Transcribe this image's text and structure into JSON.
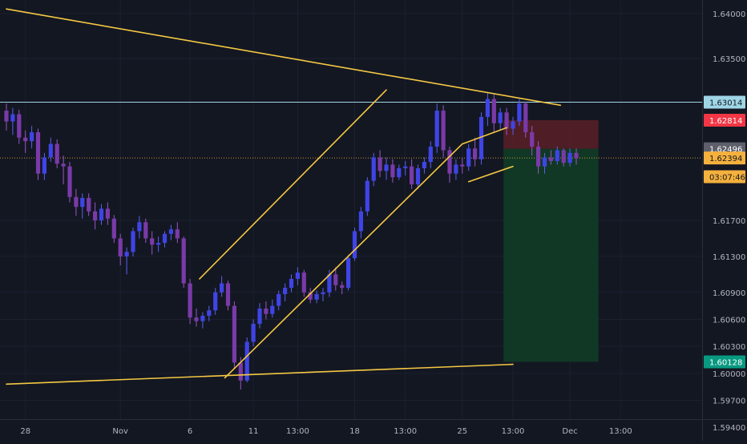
{
  "chart_data": {
    "type": "candlestick",
    "y_axis": {
      "ylim": [
        1.5925,
        1.6415
      ],
      "ticks": [
        "1.64000",
        "1.63500",
        "1.61700",
        "1.61300",
        "1.60900",
        "1.60600",
        "1.60300",
        "1.60000",
        "1.59700",
        "1.59400"
      ],
      "tick_values": [
        1.64,
        1.635,
        1.617,
        1.613,
        1.609,
        1.606,
        1.603,
        1.6,
        1.597,
        1.594
      ]
    },
    "x_axis": {
      "ticks": [
        "28",
        "Nov",
        "6",
        "11",
        "13:00",
        "18",
        "13:00",
        "25",
        "13:00",
        "Dec",
        "13:00"
      ],
      "tick_positions": [
        3,
        18,
        29,
        39,
        46,
        55,
        63,
        72,
        80,
        89,
        97
      ]
    },
    "price_badges": [
      {
        "label": "1.63014",
        "value": 1.63014,
        "kind": "level",
        "color": "#9fd6e6"
      },
      {
        "label": "1.62814",
        "value": 1.62814,
        "kind": "stop",
        "color": "#f23645"
      },
      {
        "label": "1.62496",
        "value": 1.62496,
        "kind": "entry",
        "color": "#5d606b"
      },
      {
        "label": "1.62394",
        "value": 1.62394,
        "kind": "last",
        "color": "#f5b13d"
      },
      {
        "label": "03:07:46",
        "value": 1.62185,
        "kind": "countdown",
        "color": "#f5b13d"
      },
      {
        "label": "1.60128",
        "value": 1.60128,
        "kind": "target",
        "color": "#089981"
      }
    ],
    "horizontal_level": 1.63014,
    "current_price": 1.62394,
    "position": {
      "entry": 1.62496,
      "stop": 1.62814,
      "target": 1.60128,
      "x_start": 78.5,
      "x_end": 93.5
    },
    "trendlines": [
      {
        "x": [
          0,
          87.5
        ],
        "y": [
          1.6405,
          1.6298
        ]
      },
      {
        "x": [
          0,
          80
        ],
        "y": [
          1.5988,
          1.601
        ]
      },
      {
        "x": [
          30.5,
          60
        ],
        "y": [
          1.6105,
          1.6315
        ]
      },
      {
        "x": [
          34.5,
          72
        ],
        "y": [
          1.5995,
          1.6255
        ]
      },
      {
        "x": [
          72,
          79
        ],
        "y": [
          1.6255,
          1.6273
        ]
      },
      {
        "x": [
          73,
          80
        ],
        "y": [
          1.6213,
          1.623
        ]
      }
    ],
    "candles": [
      [
        1.6292,
        1.63,
        1.627,
        1.628
      ],
      [
        1.628,
        1.6295,
        1.6265,
        1.6288
      ],
      [
        1.6288,
        1.6293,
        1.6255,
        1.6262
      ],
      [
        1.6262,
        1.627,
        1.6245,
        1.6258
      ],
      [
        1.6258,
        1.6275,
        1.625,
        1.6268
      ],
      [
        1.6268,
        1.6272,
        1.6215,
        1.6222
      ],
      [
        1.6222,
        1.6245,
        1.6215,
        1.624
      ],
      [
        1.624,
        1.6262,
        1.6235,
        1.6255
      ],
      [
        1.6255,
        1.626,
        1.6228,
        1.6233
      ],
      [
        1.6233,
        1.6242,
        1.621,
        1.623
      ],
      [
        1.623,
        1.6235,
        1.619,
        1.6196
      ],
      [
        1.6196,
        1.6205,
        1.6175,
        1.6185
      ],
      [
        1.6185,
        1.62,
        1.6172,
        1.6195
      ],
      [
        1.6195,
        1.62,
        1.6175,
        1.618
      ],
      [
        1.618,
        1.619,
        1.616,
        1.617
      ],
      [
        1.617,
        1.6188,
        1.6165,
        1.6183
      ],
      [
        1.6183,
        1.619,
        1.6165,
        1.6172
      ],
      [
        1.6172,
        1.6176,
        1.6145,
        1.615
      ],
      [
        1.615,
        1.6155,
        1.612,
        1.613
      ],
      [
        1.613,
        1.614,
        1.611,
        1.6135
      ],
      [
        1.6135,
        1.6162,
        1.613,
        1.6158
      ],
      [
        1.6158,
        1.6175,
        1.615,
        1.6168
      ],
      [
        1.6168,
        1.6172,
        1.6145,
        1.615
      ],
      [
        1.615,
        1.6158,
        1.6132,
        1.6143
      ],
      [
        1.6143,
        1.6152,
        1.6135,
        1.6145
      ],
      [
        1.6145,
        1.6158,
        1.614,
        1.6155
      ],
      [
        1.6155,
        1.6165,
        1.6148,
        1.616
      ],
      [
        1.616,
        1.6168,
        1.6145,
        1.615
      ],
      [
        1.615,
        1.6152,
        1.6095,
        1.61
      ],
      [
        1.61,
        1.6105,
        1.6055,
        1.6062
      ],
      [
        1.6062,
        1.6072,
        1.6052,
        1.6058
      ],
      [
        1.6058,
        1.6068,
        1.605,
        1.6064
      ],
      [
        1.6064,
        1.6075,
        1.6058,
        1.607
      ],
      [
        1.607,
        1.6095,
        1.6065,
        1.609
      ],
      [
        1.609,
        1.6108,
        1.6085,
        1.61
      ],
      [
        1.61,
        1.6103,
        1.607,
        1.6075
      ],
      [
        1.6075,
        1.608,
        1.6005,
        1.6012
      ],
      [
        1.6012,
        1.6018,
        1.5982,
        1.5992
      ],
      [
        1.5992,
        1.604,
        1.599,
        1.6035
      ],
      [
        1.6035,
        1.606,
        1.603,
        1.6055
      ],
      [
        1.6055,
        1.6078,
        1.605,
        1.6072
      ],
      [
        1.6072,
        1.608,
        1.606,
        1.6066
      ],
      [
        1.6066,
        1.6082,
        1.6062,
        1.6075
      ],
      [
        1.6075,
        1.6092,
        1.607,
        1.6088
      ],
      [
        1.6088,
        1.61,
        1.608,
        1.6095
      ],
      [
        1.6095,
        1.611,
        1.609,
        1.6105
      ],
      [
        1.6105,
        1.6118,
        1.6098,
        1.6112
      ],
      [
        1.6112,
        1.6115,
        1.6085,
        1.609
      ],
      [
        1.609,
        1.6095,
        1.6078,
        1.6082
      ],
      [
        1.6082,
        1.6092,
        1.6078,
        1.6088
      ],
      [
        1.6088,
        1.6095,
        1.608,
        1.609
      ],
      [
        1.609,
        1.6115,
        1.6085,
        1.611
      ],
      [
        1.611,
        1.6118,
        1.6092,
        1.6098
      ],
      [
        1.6098,
        1.6102,
        1.6088,
        1.6095
      ],
      [
        1.6095,
        1.6132,
        1.6092,
        1.6128
      ],
      [
        1.6128,
        1.6162,
        1.6125,
        1.6158
      ],
      [
        1.6158,
        1.6185,
        1.615,
        1.618
      ],
      [
        1.618,
        1.6218,
        1.6175,
        1.6214
      ],
      [
        1.6214,
        1.6245,
        1.6208,
        1.624
      ],
      [
        1.624,
        1.6248,
        1.6218,
        1.6225
      ],
      [
        1.6225,
        1.624,
        1.6215,
        1.6232
      ],
      [
        1.6232,
        1.6238,
        1.6212,
        1.6218
      ],
      [
        1.6218,
        1.6232,
        1.6215,
        1.6228
      ],
      [
        1.6228,
        1.6236,
        1.622,
        1.623
      ],
      [
        1.623,
        1.6238,
        1.6205,
        1.621
      ],
      [
        1.621,
        1.6232,
        1.6205,
        1.6228
      ],
      [
        1.6228,
        1.624,
        1.6222,
        1.6235
      ],
      [
        1.6235,
        1.6258,
        1.6228,
        1.6252
      ],
      [
        1.6252,
        1.63,
        1.6245,
        1.6292
      ],
      [
        1.6292,
        1.6298,
        1.624,
        1.6248
      ],
      [
        1.6248,
        1.6252,
        1.6212,
        1.6222
      ],
      [
        1.6222,
        1.6238,
        1.6215,
        1.6232
      ],
      [
        1.6232,
        1.624,
        1.6222,
        1.623
      ],
      [
        1.623,
        1.6255,
        1.6225,
        1.625
      ],
      [
        1.625,
        1.6262,
        1.623,
        1.6238
      ],
      [
        1.6238,
        1.629,
        1.6232,
        1.6285
      ],
      [
        1.6285,
        1.6312,
        1.6275,
        1.6305
      ],
      [
        1.6305,
        1.631,
        1.6268,
        1.6278
      ],
      [
        1.6278,
        1.6295,
        1.627,
        1.629
      ],
      [
        1.629,
        1.6295,
        1.6265,
        1.6272
      ],
      [
        1.6272,
        1.6285,
        1.6265,
        1.628
      ],
      [
        1.628,
        1.6305,
        1.6275,
        1.63
      ],
      [
        1.63,
        1.6302,
        1.6262,
        1.6268
      ],
      [
        1.6268,
        1.6275,
        1.6242,
        1.6252
      ],
      [
        1.6252,
        1.6258,
        1.6222,
        1.623
      ],
      [
        1.623,
        1.6245,
        1.6222,
        1.624
      ],
      [
        1.624,
        1.6248,
        1.6232,
        1.6236
      ],
      [
        1.6236,
        1.6252,
        1.6232,
        1.6248
      ],
      [
        1.6248,
        1.625,
        1.623,
        1.6234
      ],
      [
        1.6234,
        1.625,
        1.623,
        1.6245
      ],
      [
        1.6245,
        1.625,
        1.6232,
        1.6239
      ]
    ]
  }
}
